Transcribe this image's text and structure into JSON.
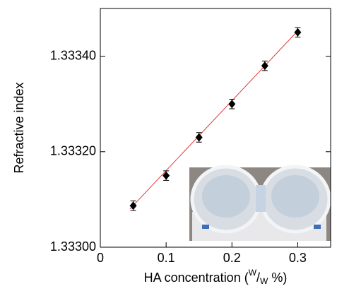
{
  "chart_data": {
    "type": "scatter",
    "xlabel": [
      "HA concentration (",
      "W",
      "/",
      "W",
      " %)"
    ],
    "ylabel": "Refractive index",
    "x": [
      0.05,
      0.1,
      0.15,
      0.2,
      0.25,
      0.3
    ],
    "series": [
      {
        "color": "#000000",
        "values": [
          1.333087,
          1.33315,
          1.33323,
          1.3333,
          1.33338,
          1.33345
        ],
        "errors": [
          1e-05,
          1e-05,
          1e-05,
          1e-05,
          1e-05,
          1e-05
        ]
      }
    ],
    "fit_line": {
      "color": "#e03a3a",
      "x": [
        0.045,
        0.302
      ],
      "values": [
        1.33308,
        1.333456
      ]
    },
    "xlim": [
      0,
      0.35
    ],
    "xticks": [
      0,
      0.1,
      0.2,
      0.3
    ],
    "ylim": [
      1.333,
      1.3335
    ],
    "yticks": [
      {
        "value": 1.333,
        "label": "1.33300"
      },
      {
        "value": 1.3332,
        "label": "1.33320"
      },
      {
        "value": 1.3334,
        "label": "1.33340"
      }
    ]
  }
}
